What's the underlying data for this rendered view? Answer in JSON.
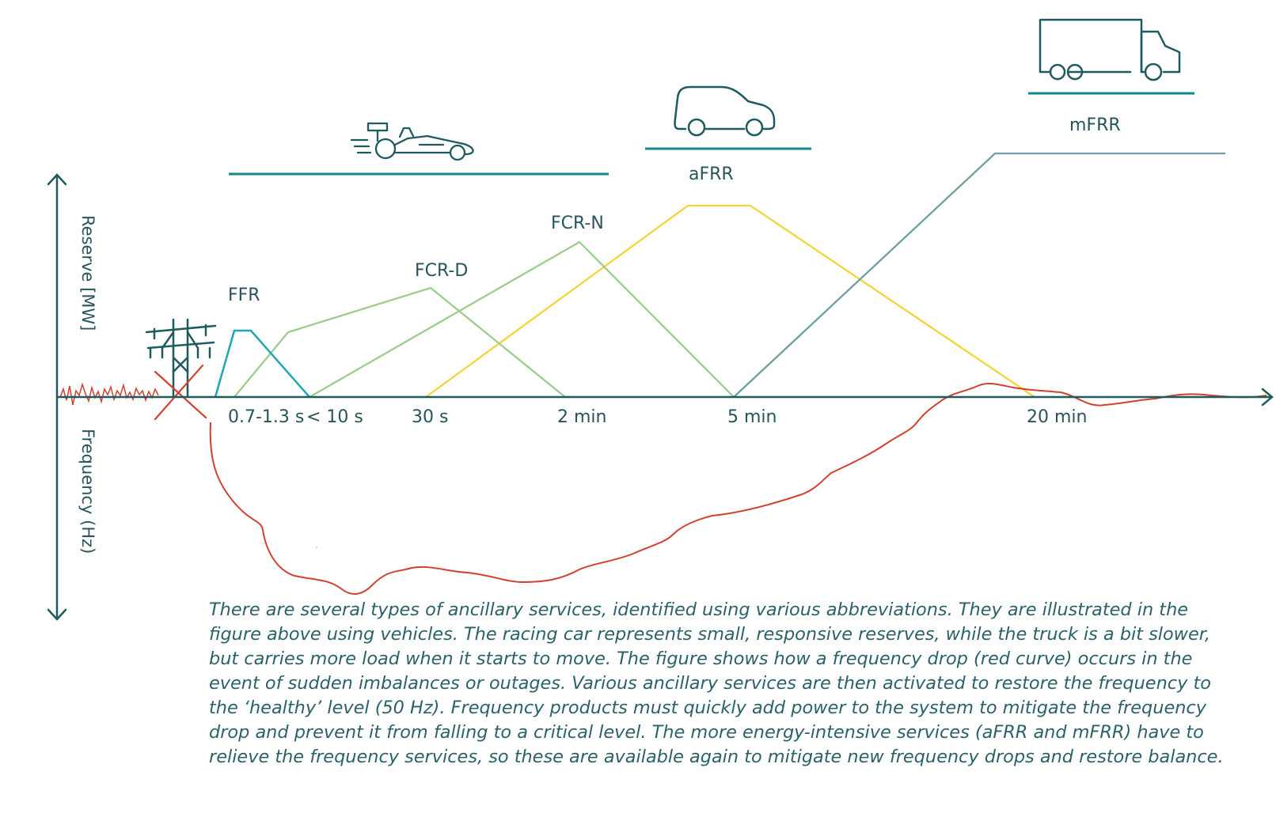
{
  "axes": {
    "y_upper_label": "Reserve [MW]",
    "y_lower_label": "Frequency (Hz)"
  },
  "time_labels": [
    "0.7-1.3 s",
    "< 10 s",
    "30 s",
    "2 min",
    "5 min",
    "20 min"
  ],
  "services": [
    {
      "id": "ffr",
      "label": "FFR",
      "color": "#20a6b8"
    },
    {
      "id": "fcrd",
      "label": "FCR-D",
      "color": "#9ccd8d"
    },
    {
      "id": "fcrn",
      "label": "FCR-N",
      "color": "#9ccd8d"
    },
    {
      "id": "afrr",
      "label": "aFRR",
      "color": "#f5d43a"
    },
    {
      "id": "mfrr",
      "label": "mFRR",
      "color": "#6f9ea4"
    }
  ],
  "vehicles": [
    {
      "icon": "racing-car-icon",
      "represents": ""
    },
    {
      "icon": "car-icon",
      "represents": "aFRR"
    },
    {
      "icon": "truck-icon",
      "represents": "mFRR"
    }
  ],
  "colors": {
    "axis": "#1f5a5e",
    "bracket": "#13888a",
    "frequency_curve": "#d2402f",
    "pylon": "#1f5a5e",
    "pylon_cross": "#d2402f"
  },
  "caption": "There are several types of ancillary services, identified using various abbreviations. They are illustrated in the figure above using vehicles. The racing car represents small, responsive reserves, while the truck is a bit slower, but carries more load when it starts to move. The figure shows how a frequency drop (red curve) occurs in the event of sudden imbalances or outages. Various ancillary services are then activated to restore the frequency to the ‘healthy’ level (50 Hz). Frequency products must quickly add power to the system to mitigate the frequency drop and prevent it from falling to a critical level. The more energy-intensive services (aFRR and mFRR) have to relieve the frequency services, so these are available again to mitigate new frequency drops and restore balance."
}
